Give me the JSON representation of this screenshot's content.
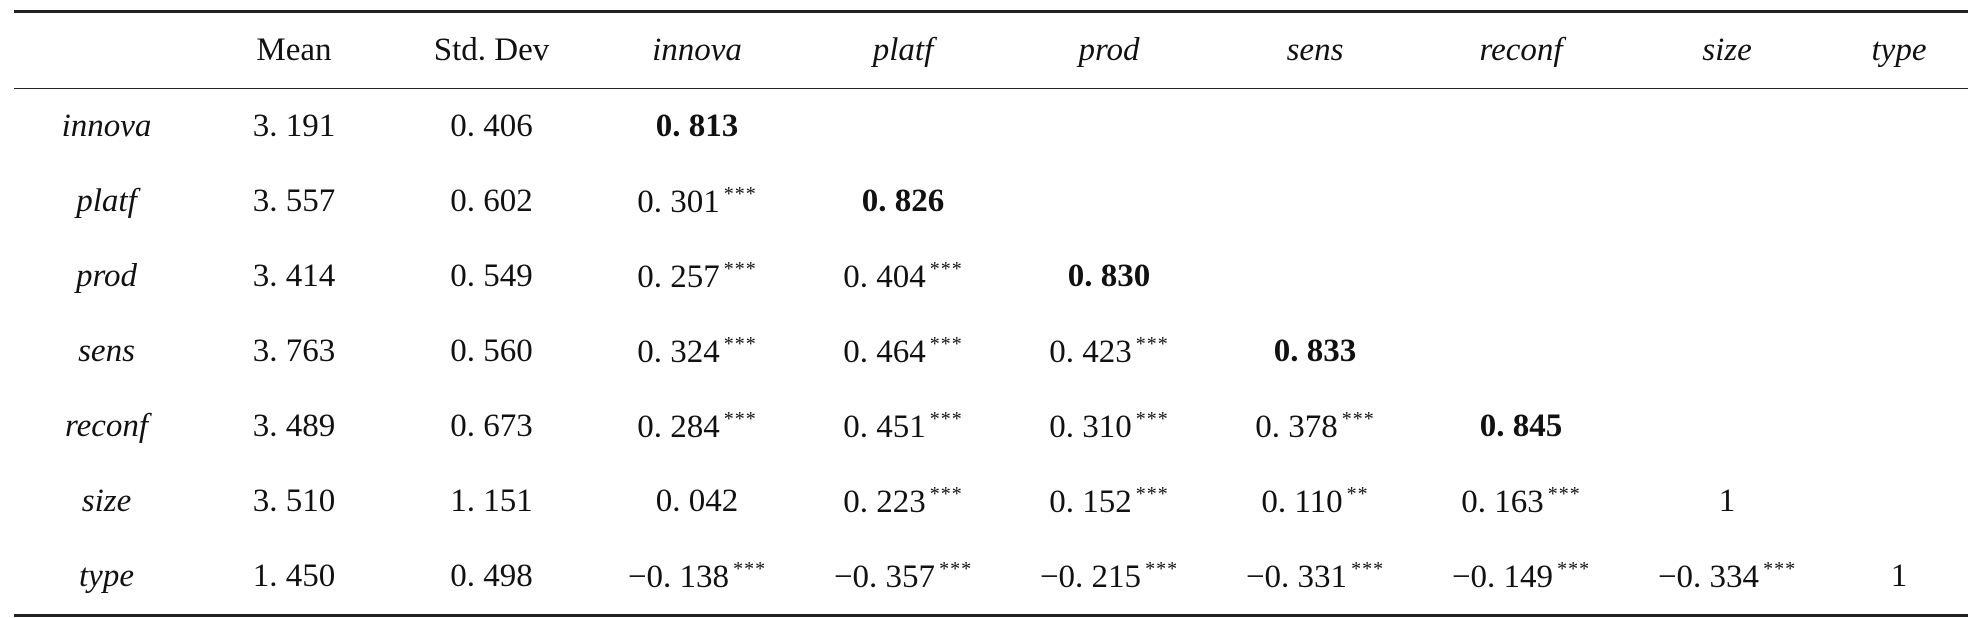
{
  "table": {
    "headers": [
      "",
      "Mean",
      "Std. Dev",
      "innova",
      "platf",
      "prod",
      "sens",
      "reconf",
      "size",
      "type"
    ],
    "rows": [
      {
        "label": "innova",
        "mean": "3. 191",
        "sd": "0. 406",
        "cells": [
          {
            "v": "0. 813",
            "s": "",
            "b": true
          },
          {
            "v": "",
            "s": "",
            "b": false
          },
          {
            "v": "",
            "s": "",
            "b": false
          },
          {
            "v": "",
            "s": "",
            "b": false
          },
          {
            "v": "",
            "s": "",
            "b": false
          },
          {
            "v": "",
            "s": "",
            "b": false
          },
          {
            "v": "",
            "s": "",
            "b": false
          }
        ]
      },
      {
        "label": "platf",
        "mean": "3. 557",
        "sd": "0. 602",
        "cells": [
          {
            "v": "0. 301",
            "s": "***",
            "b": false
          },
          {
            "v": "0. 826",
            "s": "",
            "b": true
          },
          {
            "v": "",
            "s": "",
            "b": false
          },
          {
            "v": "",
            "s": "",
            "b": false
          },
          {
            "v": "",
            "s": "",
            "b": false
          },
          {
            "v": "",
            "s": "",
            "b": false
          },
          {
            "v": "",
            "s": "",
            "b": false
          }
        ]
      },
      {
        "label": "prod",
        "mean": "3. 414",
        "sd": "0. 549",
        "cells": [
          {
            "v": "0. 257",
            "s": "***",
            "b": false
          },
          {
            "v": "0. 404",
            "s": "***",
            "b": false
          },
          {
            "v": "0. 830",
            "s": "",
            "b": true
          },
          {
            "v": "",
            "s": "",
            "b": false
          },
          {
            "v": "",
            "s": "",
            "b": false
          },
          {
            "v": "",
            "s": "",
            "b": false
          },
          {
            "v": "",
            "s": "",
            "b": false
          }
        ]
      },
      {
        "label": "sens",
        "mean": "3. 763",
        "sd": "0. 560",
        "cells": [
          {
            "v": "0. 324",
            "s": "***",
            "b": false
          },
          {
            "v": "0. 464",
            "s": "***",
            "b": false
          },
          {
            "v": "0. 423",
            "s": "***",
            "b": false
          },
          {
            "v": "0. 833",
            "s": "",
            "b": true
          },
          {
            "v": "",
            "s": "",
            "b": false
          },
          {
            "v": "",
            "s": "",
            "b": false
          },
          {
            "v": "",
            "s": "",
            "b": false
          }
        ]
      },
      {
        "label": "reconf",
        "mean": "3. 489",
        "sd": "0. 673",
        "cells": [
          {
            "v": "0. 284",
            "s": "***",
            "b": false
          },
          {
            "v": "0. 451",
            "s": "***",
            "b": false
          },
          {
            "v": "0. 310",
            "s": "***",
            "b": false
          },
          {
            "v": "0. 378",
            "s": "***",
            "b": false
          },
          {
            "v": "0. 845",
            "s": "",
            "b": true
          },
          {
            "v": "",
            "s": "",
            "b": false
          },
          {
            "v": "",
            "s": "",
            "b": false
          }
        ]
      },
      {
        "label": "size",
        "mean": "3. 510",
        "sd": "1. 151",
        "cells": [
          {
            "v": "0. 042",
            "s": "",
            "b": false
          },
          {
            "v": "0. 223",
            "s": "***",
            "b": false
          },
          {
            "v": "0. 152",
            "s": "***",
            "b": false
          },
          {
            "v": "0. 110",
            "s": "**",
            "b": false
          },
          {
            "v": "0. 163",
            "s": "***",
            "b": false
          },
          {
            "v": "1",
            "s": "",
            "b": false
          },
          {
            "v": "",
            "s": "",
            "b": false
          }
        ]
      },
      {
        "label": "type",
        "mean": "1. 450",
        "sd": "0. 498",
        "cells": [
          {
            "v": "−0. 138",
            "s": "***",
            "b": false
          },
          {
            "v": "−0. 357",
            "s": "***",
            "b": false
          },
          {
            "v": "−0. 215",
            "s": "***",
            "b": false
          },
          {
            "v": "−0. 331",
            "s": "***",
            "b": false
          },
          {
            "v": "−0. 149",
            "s": "***",
            "b": false
          },
          {
            "v": "−0. 334",
            "s": "***",
            "b": false
          },
          {
            "v": "1",
            "s": "",
            "b": false
          }
        ]
      }
    ]
  }
}
